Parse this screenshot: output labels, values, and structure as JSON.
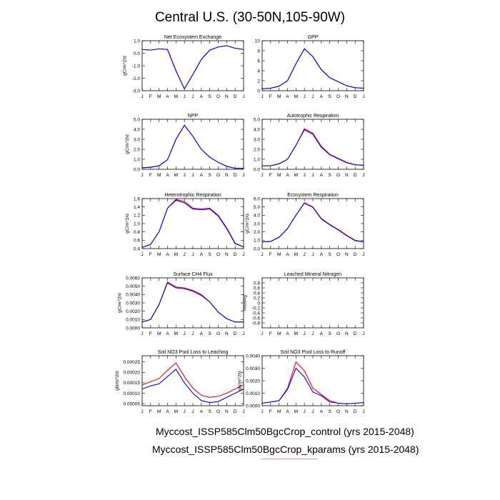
{
  "figure": {
    "title": "Central U.S. (30-50N,105-90W)",
    "legend": [
      {
        "label": "Myccost_ISSP585Clm50BgcCrop_control (yrs 2015-2048)",
        "color": "#0000ff"
      },
      {
        "label": "Myccost_ISSP585Clm50BgcCrop_kparams (yrs 2015-2048)",
        "color": "#ff0000"
      }
    ]
  },
  "chart_data": [
    {
      "type": "line",
      "title": "Net Ecosystem Exchange",
      "ylabel": "gC/m^2/d",
      "x": [
        "J",
        "F",
        "M",
        "A",
        "M",
        "J",
        "J",
        "A",
        "S",
        "O",
        "N",
        "D",
        "J"
      ],
      "yticks": [
        -3.0,
        -2.0,
        -1.0,
        0.0,
        1.0
      ],
      "yticklabels": [
        "-3.0",
        "-2.0",
        "-1.0",
        "0.0",
        "1.0"
      ],
      "ylim": [
        -3.0,
        1.0
      ],
      "series": [
        {
          "color": "#ff0000",
          "values": [
            0.3,
            0.25,
            0.35,
            0.3,
            -1.4,
            -2.85,
            -1.7,
            -0.5,
            0.25,
            0.5,
            0.6,
            0.4,
            0.3
          ]
        },
        {
          "color": "#0000ff",
          "values": [
            0.3,
            0.25,
            0.35,
            0.3,
            -1.4,
            -2.85,
            -1.7,
            -0.5,
            0.25,
            0.5,
            0.6,
            0.4,
            0.3
          ]
        }
      ]
    },
    {
      "type": "line",
      "title": "GPP",
      "ylabel": "",
      "x": [
        "J",
        "F",
        "M",
        "A",
        "M",
        "J",
        "J",
        "A",
        "S",
        "O",
        "N",
        "D",
        "J"
      ],
      "yticks": [
        0,
        2,
        4,
        6,
        8,
        10
      ],
      "yticklabels": [
        "0",
        "2",
        "4",
        "6",
        "8",
        "10"
      ],
      "ylim": [
        0,
        10
      ],
      "series": [
        {
          "color": "#ff0000",
          "values": [
            0.4,
            0.5,
            0.9,
            2.0,
            5.4,
            8.4,
            6.8,
            4.2,
            2.6,
            1.8,
            1.0,
            0.6,
            0.5
          ]
        },
        {
          "color": "#0000ff",
          "values": [
            0.4,
            0.5,
            0.9,
            2.0,
            5.4,
            8.4,
            6.8,
            4.2,
            2.6,
            1.8,
            1.0,
            0.6,
            0.5
          ]
        }
      ]
    },
    {
      "type": "line",
      "title": "NPP",
      "ylabel": "gC/m^2/d",
      "x": [
        "J",
        "F",
        "M",
        "A",
        "M",
        "J",
        "J",
        "A",
        "S",
        "O",
        "N",
        "D",
        "J"
      ],
      "yticks": [
        0.0,
        1.0,
        2.0,
        3.0,
        4.0,
        5.0
      ],
      "yticklabels": [
        "0.0",
        "1.0",
        "2.0",
        "3.0",
        "4.0",
        "5.0"
      ],
      "ylim": [
        0.0,
        5.0
      ],
      "series": [
        {
          "color": "#ff0000",
          "values": [
            0.15,
            0.2,
            0.35,
            0.95,
            3.0,
            4.4,
            3.3,
            2.0,
            1.2,
            0.7,
            0.3,
            0.1,
            0.1
          ]
        },
        {
          "color": "#0000ff",
          "values": [
            0.15,
            0.2,
            0.35,
            0.95,
            3.0,
            4.4,
            3.3,
            2.0,
            1.2,
            0.7,
            0.3,
            0.1,
            0.1
          ]
        }
      ]
    },
    {
      "type": "line",
      "title": "Autotrophic Respiration",
      "ylabel": "",
      "x": [
        "J",
        "F",
        "M",
        "A",
        "M",
        "J",
        "J",
        "A",
        "S",
        "O",
        "N",
        "D",
        "J"
      ],
      "yticks": [
        0.0,
        1.0,
        2.0,
        3.0,
        4.0,
        5.0
      ],
      "yticklabels": [
        "0.0",
        "1.0",
        "2.0",
        "3.0",
        "4.0",
        "5.0"
      ],
      "ylim": [
        0.0,
        5.0
      ],
      "series": [
        {
          "color": "#ff0000",
          "values": [
            0.35,
            0.35,
            0.55,
            1.0,
            2.4,
            4.05,
            3.6,
            2.3,
            1.5,
            1.1,
            0.7,
            0.45,
            0.4
          ]
        },
        {
          "color": "#0000ff",
          "values": [
            0.35,
            0.35,
            0.55,
            1.0,
            2.4,
            3.95,
            3.5,
            2.2,
            1.45,
            1.05,
            0.65,
            0.45,
            0.4
          ]
        }
      ]
    },
    {
      "type": "line",
      "title": "Heterotrophic Respiration",
      "ylabel": "gC/m^2/d",
      "x": [
        "J",
        "F",
        "M",
        "A",
        "M",
        "J",
        "J",
        "A",
        "S",
        "O",
        "N",
        "D",
        "J"
      ],
      "yticks": [
        0.4,
        0.6,
        0.8,
        1.0,
        1.2,
        1.4,
        1.6
      ],
      "yticklabels": [
        "0.4",
        "0.6",
        "0.8",
        "1.0",
        "1.2",
        "1.4",
        "1.6"
      ],
      "ylim": [
        0.4,
        1.6
      ],
      "series": [
        {
          "color": "#ff0000",
          "values": [
            0.43,
            0.5,
            0.8,
            1.37,
            1.58,
            1.53,
            1.37,
            1.35,
            1.37,
            1.2,
            0.9,
            0.53,
            0.44
          ]
        },
        {
          "color": "#0000ff",
          "values": [
            0.43,
            0.5,
            0.8,
            1.37,
            1.56,
            1.5,
            1.35,
            1.33,
            1.35,
            1.18,
            0.88,
            0.52,
            0.44
          ]
        }
      ]
    },
    {
      "type": "line",
      "title": "Ecosystem Respiration",
      "ylabel": "gC/m^2/d",
      "x": [
        "J",
        "F",
        "M",
        "A",
        "M",
        "J",
        "J",
        "A",
        "S",
        "O",
        "N",
        "D",
        "J"
      ],
      "yticks": [
        0.0,
        1.0,
        2.0,
        3.0,
        4.0,
        5.0,
        6.0
      ],
      "yticklabels": [
        "0.0",
        "1.0",
        "2.0",
        "3.0",
        "4.0",
        "5.0",
        "6.0"
      ],
      "ylim": [
        0.0,
        6.0
      ],
      "series": [
        {
          "color": "#ff0000",
          "values": [
            0.8,
            0.85,
            1.35,
            2.4,
            4.0,
            5.5,
            5.0,
            3.6,
            2.9,
            2.3,
            1.6,
            1.0,
            0.8
          ]
        },
        {
          "color": "#0000ff",
          "values": [
            0.8,
            0.85,
            1.35,
            2.4,
            4.0,
            5.45,
            4.95,
            3.55,
            2.85,
            2.25,
            1.55,
            0.95,
            0.8
          ]
        }
      ]
    },
    {
      "type": "line",
      "title": "Surface CH4 Flux",
      "ylabel": "gC/m^2/d",
      "x": [
        "J",
        "F",
        "M",
        "A",
        "M",
        "J",
        "J",
        "A",
        "S",
        "O",
        "N",
        "D",
        "J"
      ],
      "yticks": [
        0.0,
        0.001,
        0.002,
        0.003,
        0.004,
        0.005,
        0.006
      ],
      "yticklabels": [
        "0.0000",
        "0.0010",
        "0.0020",
        "0.0030",
        "0.0040",
        "0.0050",
        "0.0060"
      ],
      "ylim": [
        0.0,
        0.006
      ],
      "series": [
        {
          "color": "#ff0000",
          "values": [
            0.0007,
            0.001,
            0.0028,
            0.0055,
            0.0049,
            0.0048,
            0.0045,
            0.004,
            0.0031,
            0.0019,
            0.0011,
            0.0007,
            0.0007
          ]
        },
        {
          "color": "#0000ff",
          "values": [
            0.0007,
            0.001,
            0.0028,
            0.0054,
            0.0048,
            0.0047,
            0.0044,
            0.0039,
            0.0031,
            0.0019,
            0.0011,
            0.0007,
            0.0007
          ]
        }
      ]
    },
    {
      "type": "line",
      "title": "Leached Mineral Nitrogen",
      "ylabel": "missing",
      "x": [
        "J",
        "F",
        "M",
        "A",
        "M",
        "J",
        "J",
        "A",
        "S",
        "O",
        "N",
        "D",
        "J"
      ],
      "yticks": [
        -0.8,
        -0.6,
        -0.4,
        -0.2,
        0.0,
        0.2,
        0.4,
        0.6,
        0.8
      ],
      "yticklabels": [
        "-0.8",
        "-0.6",
        "-0.4",
        "-0.2",
        "0",
        "0.2",
        "0.4",
        "0.6",
        "0.8"
      ],
      "ylim": [
        -1.0,
        1.0
      ],
      "series": []
    },
    {
      "type": "line",
      "title": "Soil NO3 Pool Loss to Leaching",
      "ylabel": "gN/m^2/d",
      "x": [
        "J",
        "F",
        "M",
        "A",
        "M",
        "J",
        "J",
        "A",
        "S",
        "O",
        "N",
        "D",
        "J"
      ],
      "yticks": [
        5e-05,
        0.0001,
        0.00015,
        0.0002,
        0.00025
      ],
      "yticklabels": [
        "0.00005",
        "0.00010",
        "0.00015",
        "0.00020",
        "0.00025"
      ],
      "ylim": [
        4e-05,
        0.00028
      ],
      "series": [
        {
          "color": "#ff0000",
          "values": [
            0.00014,
            0.000155,
            0.00017,
            0.00021,
            0.000245,
            0.00018,
            0.000125,
            9e-05,
            8e-05,
            8.5e-05,
            0.0001,
            0.00012,
            0.00014
          ]
        },
        {
          "color": "#0000ff",
          "values": [
            0.00012,
            0.000135,
            0.000145,
            0.00018,
            0.000215,
            0.00015,
            0.0001,
            6.5e-05,
            5.5e-05,
            6e-05,
            8e-05,
            0.0001,
            0.00012
          ]
        }
      ]
    },
    {
      "type": "line",
      "title": "Soil NO3 Pool Loss to Runoff",
      "ylabel": "gN/m^2/d",
      "x": [
        "J",
        "F",
        "M",
        "A",
        "M",
        "J",
        "J",
        "A",
        "S",
        "O",
        "N",
        "D",
        "J"
      ],
      "yticks": [
        0.0,
        0.001,
        0.002,
        0.003,
        0.004
      ],
      "yticklabels": [
        "0.0000",
        "0.0010",
        "0.0020",
        "0.0030",
        "0.0040"
      ],
      "ylim": [
        0.0,
        0.004
      ],
      "series": [
        {
          "color": "#ff0000",
          "values": [
            0.0002,
            0.0003,
            0.0004,
            0.0014,
            0.0035,
            0.0028,
            0.0014,
            0.0009,
            0.0004,
            0.0002,
            0.00015,
            0.0002,
            0.00025
          ]
        },
        {
          "color": "#0000ff",
          "values": [
            0.0002,
            0.0003,
            0.0004,
            0.0013,
            0.003,
            0.0023,
            0.0011,
            0.0008,
            0.0003,
            0.0002,
            0.00015,
            0.0002,
            0.00025
          ]
        }
      ]
    }
  ]
}
